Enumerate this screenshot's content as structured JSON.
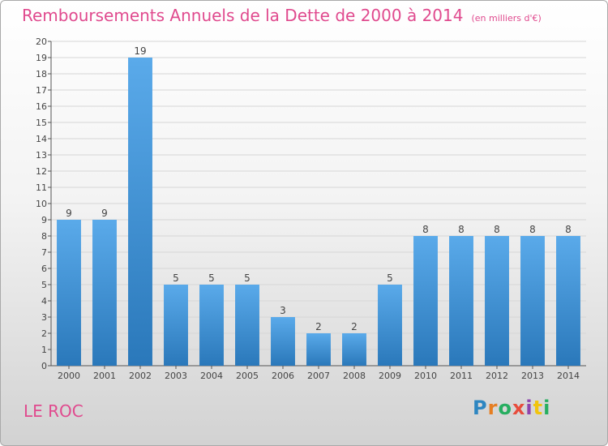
{
  "header": {
    "title": "Remboursements Annuels de la Dette de 2000 à 2014",
    "unit_note": "(en milliers d'€)"
  },
  "footer": {
    "place_name": "LE ROC",
    "logo_text": "Proxiti"
  },
  "colors": {
    "title": "#e04a8e",
    "bar_top": "#5aaaea",
    "bar_bottom": "#2a78ba",
    "logo": [
      "#2e86c1",
      "#e67e22",
      "#27ae60",
      "#e74c3c",
      "#8e44ad",
      "#f1c40f",
      "#27ae60"
    ]
  },
  "chart_data": {
    "type": "bar",
    "title": "Remboursements Annuels de la Dette de 2000 à 2014",
    "categories": [
      "2000",
      "2001",
      "2002",
      "2003",
      "2004",
      "2005",
      "2006",
      "2007",
      "2008",
      "2009",
      "2010",
      "2011",
      "2012",
      "2013",
      "2014"
    ],
    "values": [
      9,
      9,
      19,
      5,
      5,
      5,
      3,
      2,
      2,
      5,
      8,
      8,
      8,
      8,
      8
    ],
    "xlabel": "",
    "ylabel": "",
    "ylim": [
      0,
      20
    ],
    "yticks": [
      0,
      1,
      2,
      3,
      4,
      5,
      6,
      7,
      8,
      9,
      10,
      11,
      12,
      13,
      14,
      15,
      16,
      17,
      18,
      19,
      20
    ],
    "grid": true,
    "data_labels": true
  }
}
